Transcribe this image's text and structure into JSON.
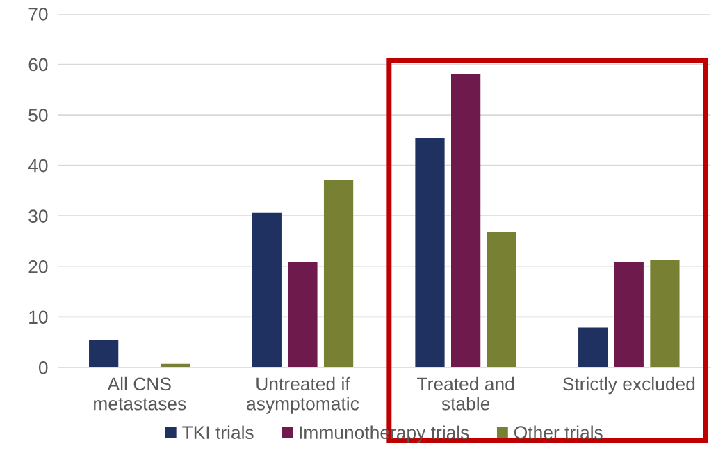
{
  "chart_data": {
    "type": "bar",
    "categories": [
      "All CNS\nmetastases",
      "Untreated if\nasymptomatic",
      "Treated and\nstable",
      "Strictly excluded"
    ],
    "series": [
      {
        "name": "TKI trials",
        "color": "#1f3160",
        "values": [
          5.5,
          30.6,
          45.4,
          7.9
        ]
      },
      {
        "name": "Immunotherapy trials",
        "color": "#6e1a4c",
        "values": [
          0,
          20.9,
          58.0,
          20.9
        ]
      },
      {
        "name": "Other trials",
        "color": "#778033",
        "values": [
          0.7,
          37.2,
          26.8,
          21.3
        ]
      }
    ],
    "ylim": [
      0,
      70
    ],
    "yticks": [
      0,
      10,
      20,
      30,
      40,
      50,
      60,
      70
    ],
    "grid": "y",
    "legend": "bottom"
  }
}
